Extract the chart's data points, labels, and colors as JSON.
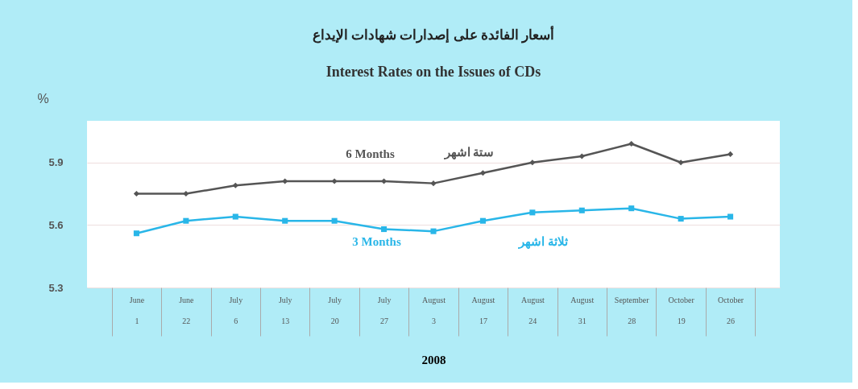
{
  "chart_data": {
    "type": "line",
    "title": "أسعار الفائدة على إصدارات شهادات الإيداع",
    "subtitle": "Interest Rates on the Issues of CDs",
    "xlabel": "2008",
    "ylabel": "%",
    "categories": [
      "June 1",
      "June 22",
      "July 6",
      "July 13",
      "July 20",
      "July 27",
      "August 3",
      "August 17",
      "August 24",
      "August 31",
      "September 28",
      "October 19",
      "October 26"
    ],
    "series": [
      {
        "name": "6 Months",
        "color": "#555555",
        "marker": "diamond",
        "values": [
          5.75,
          5.75,
          5.79,
          5.81,
          5.81,
          5.81,
          5.8,
          5.85,
          5.9,
          5.93,
          5.99,
          5.9,
          5.94
        ]
      },
      {
        "name": "3 Months",
        "color": "#29b6e8",
        "marker": "square",
        "values": [
          5.56,
          5.62,
          5.64,
          5.62,
          5.62,
          5.58,
          5.57,
          5.62,
          5.66,
          5.67,
          5.68,
          5.63,
          5.64
        ]
      }
    ],
    "annotations": [
      "ستة اشهر",
      "ثلاثة اشهر"
    ],
    "ylim": [
      5.3,
      6.1
    ],
    "yticks": [
      5.3,
      5.6,
      5.9
    ],
    "grid": "y",
    "line_style": "solid"
  }
}
